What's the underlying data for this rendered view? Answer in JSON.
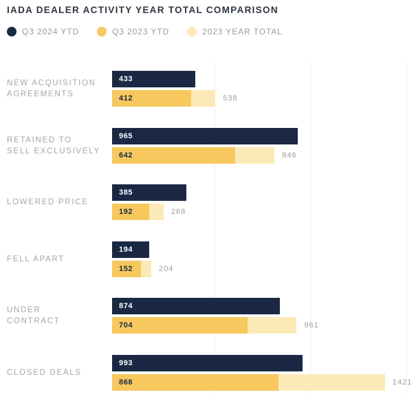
{
  "title": "IADA DEALER ACTIVITY YEAR TOTAL COMPARISON",
  "colors": {
    "navy": "#1a2844",
    "gold": "#f6c85e",
    "light_gold": "#fbeab8",
    "title_text": "#2e3542",
    "category_label_text": "#a6a6a6",
    "outside_value_text": "#9b9b9b",
    "gridline": "#ededed",
    "navy_bar_value_text": "#ffffff",
    "gold_bar_value_text": "#1a2844"
  },
  "legend": {
    "items": [
      {
        "label": "Q3 2024 YTD",
        "color": "#1a2844"
      },
      {
        "label": "Q3 2023 YTD",
        "color": "#f6c85e"
      },
      {
        "label": "2023 YEAR TOTAL",
        "color": "#fbeab8"
      }
    ]
  },
  "chart_data": {
    "type": "bar",
    "orientation": "horizontal",
    "title": "IADA DEALER ACTIVITY YEAR TOTAL COMPARISON",
    "categories": [
      "NEW ACQUISITION AGREEMENTS",
      "RETAINED TO SELL EXCLUSIVELY",
      "LOWERED PRICE",
      "FELL APART",
      "UNDER CONTRACT",
      "CLOSED DEALS"
    ],
    "category_display_lines": [
      [
        "NEW ACQUISITION",
        "AGREEMENTS"
      ],
      [
        "RETAINED TO",
        "SELL EXCLUSIVELY"
      ],
      [
        "LOWERED PRICE"
      ],
      [
        "FELL APART"
      ],
      [
        "UNDER",
        "CONTRACT"
      ],
      [
        "CLOSED DEALS"
      ]
    ],
    "series": [
      {
        "name": "Q3 2024 YTD",
        "color": "#1a2844",
        "values": [
          433,
          965,
          385,
          194,
          874,
          993
        ]
      },
      {
        "name": "Q3 2023 YTD",
        "color": "#f6c85e",
        "values": [
          412,
          642,
          192,
          152,
          704,
          868
        ]
      },
      {
        "name": "2023 YEAR TOTAL",
        "color": "#fbeab8",
        "values": [
          538,
          846,
          268,
          204,
          961,
          1421
        ]
      }
    ],
    "xlim": [
      0,
      1500
    ],
    "gridlines_x": [
      500,
      1000,
      1500
    ],
    "grid": "vertical-only",
    "legend_position": "top-left",
    "value_label_placement": "Q3 series values inside bar left edge; 2023 year totals in gray to the right of pale bars"
  }
}
